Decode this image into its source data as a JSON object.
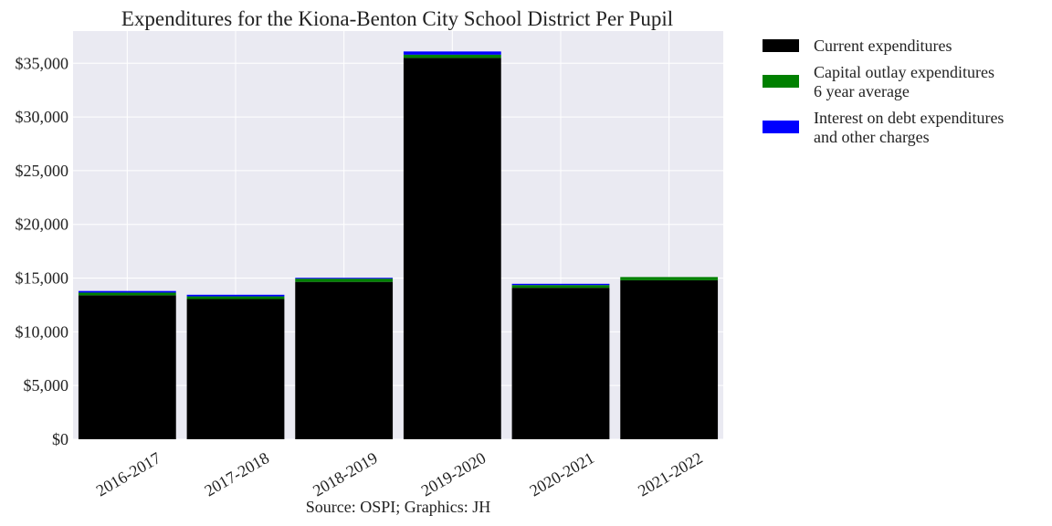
{
  "chart_data": {
    "type": "bar",
    "stacked": true,
    "title": "Expenditures for the Kiona-Benton City School District Per Pupil",
    "caption": "Source: OSPI; Graphics: JH",
    "xlabel": "",
    "ylabel": "",
    "categories": [
      "2016-2017",
      "2017-2018",
      "2018-2019",
      "2019-2020",
      "2020-2021",
      "2021-2022"
    ],
    "ylim": [
      0,
      38000
    ],
    "yticks": [
      0,
      5000,
      10000,
      15000,
      20000,
      25000,
      30000,
      35000
    ],
    "ytick_labels": [
      "$0",
      "$5,000",
      "$10,000",
      "$15,000",
      "$20,000",
      "$25,000",
      "$30,000",
      "$35,000"
    ],
    "grid": true,
    "legend_position": "outside-right-top",
    "series": [
      {
        "name": "Current expenditures",
        "color": "#000000",
        "values": [
          13400,
          13050,
          14650,
          35500,
          14100,
          14800
        ]
      },
      {
        "name": "Capital outlay expenditures\n6 year average",
        "color": "#008000",
        "values": [
          250,
          250,
          300,
          300,
          250,
          300
        ]
      },
      {
        "name": "Interest on debt expenditures\nand other charges",
        "color": "#0000ff",
        "values": [
          150,
          150,
          80,
          300,
          120,
          0
        ]
      }
    ],
    "colors": {
      "plot_background": "#eaeaf2",
      "grid": "#ffffff"
    }
  }
}
